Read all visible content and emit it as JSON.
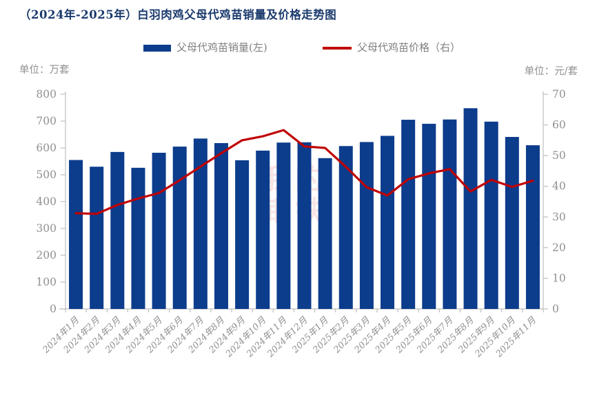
{
  "title": "（2024年-2025年）白羽肉鸡父母代鸡苗销量及价格走势图",
  "units": {
    "left": "单位：万套",
    "right": "单位：元/套"
  },
  "watermark": {
    "cn": "我的钢铁",
    "en": "Mysteel.com"
  },
  "colors": {
    "bar": "#0c3c8c",
    "line": "#c00000",
    "title": "#1b3a6d",
    "axis_text": "#909090",
    "axis_line": "#bdbdbd"
  },
  "chart_data": {
    "type": "bar+line",
    "title": "（2024年-2025年）白羽肉鸡父母代鸡苗销量及价格走势图",
    "categories": [
      "2024年1月",
      "2024年2月",
      "2024年3月",
      "2024年4月",
      "2024年5月",
      "2024年6月",
      "2024年7月",
      "2024年8月",
      "2024年9月",
      "2024年10月",
      "2024年11月",
      "2024年12月",
      "2025年1月",
      "2025年2月",
      "2025年3月",
      "2025年4月",
      "2025年5月",
      "2025年6月",
      "2025年7月",
      "2025年8月",
      "2025年9月",
      "2025年10月",
      "2025年11月"
    ],
    "series": [
      {
        "name": "父母代鸡苗销量(左)",
        "type": "bar",
        "axis": "left",
        "color": "#0c3c8c",
        "values": [
          555,
          530,
          585,
          526,
          582,
          605,
          635,
          618,
          554,
          590,
          620,
          621,
          562,
          607,
          622,
          645,
          705,
          690,
          706,
          748,
          698,
          641,
          610
        ]
      },
      {
        "name": "父母代鸡苗价格（右）",
        "type": "line",
        "axis": "right",
        "color": "#c00000",
        "values": [
          31.2,
          31.0,
          33.9,
          36.0,
          37.8,
          42.0,
          46.4,
          50.8,
          55.0,
          56.3,
          58.3,
          53.0,
          52.5,
          46.3,
          39.7,
          37.0,
          42.3,
          44.2,
          45.6,
          38.3,
          42.1,
          39.8,
          41.8
        ]
      }
    ],
    "left_axis": {
      "label": "单位：万套",
      "min": 0,
      "max": 800,
      "step": 100
    },
    "right_axis": {
      "label": "单位：元/套",
      "min": 0,
      "max": 70,
      "step": 10
    },
    "grid": false,
    "legend_position": "top-center"
  }
}
